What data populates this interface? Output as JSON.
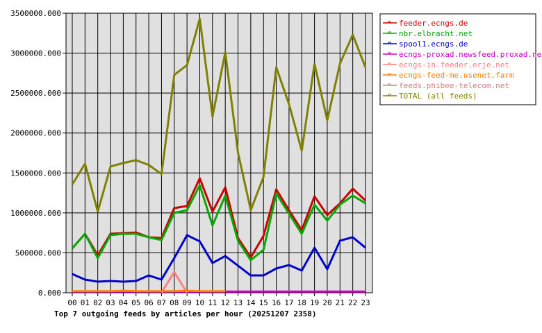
{
  "chart_data": {
    "type": "line",
    "title": "Top 7 outgoing feeds by articles per hour (20251207 2358)",
    "xlabel": "",
    "ylabel": "",
    "categories": [
      "00",
      "01",
      "02",
      "03",
      "04",
      "05",
      "06",
      "07",
      "08",
      "09",
      "10",
      "11",
      "12",
      "13",
      "14",
      "15",
      "16",
      "17",
      "18",
      "19",
      "20",
      "21",
      "22",
      "23"
    ],
    "ylim": [
      0,
      3500000
    ],
    "yticks": [
      0,
      500000,
      1000000,
      1500000,
      2000000,
      2500000,
      3000000,
      3500000
    ],
    "ytick_labels": [
      "0.000",
      "500000.000",
      "1000000.000",
      "1500000.000",
      "2000000.000",
      "2500000.000",
      "3000000.000",
      "3500000.000"
    ],
    "grid": true,
    "legend_position": "right",
    "series": [
      {
        "name": "feeder.ecngs.de",
        "color": "#cc0000",
        "values": [
          556000,
          738000,
          469000,
          738000,
          747000,
          755000,
          695000,
          686000,
          1060000,
          1086000,
          1433000,
          1016000,
          1320000,
          686000,
          443000,
          712000,
          1294000,
          1033000,
          782000,
          1207000,
          973000,
          1120000,
          1303000,
          1155000
        ]
      },
      {
        "name": "nbr.elbracht.net",
        "color": "#00aa00",
        "values": [
          556000,
          738000,
          434000,
          721000,
          738000,
          738000,
          695000,
          660000,
          999000,
          1033000,
          1346000,
          842000,
          1216000,
          652000,
          408000,
          538000,
          1242000,
          990000,
          738000,
          1103000,
          903000,
          1103000,
          1216000,
          1120000
        ]
      },
      {
        "name": "spool1.ecngs.de",
        "color": "#0000cc",
        "values": [
          234000,
          165000,
          139000,
          148000,
          139000,
          148000,
          217000,
          165000,
          434000,
          721000,
          643000,
          373000,
          460000,
          339000,
          217000,
          217000,
          304000,
          347000,
          278000,
          564000,
          295000,
          652000,
          695000,
          564000
        ]
      },
      {
        "name": "ecngs-proxad.newsfeed.proxad.net",
        "color": "#cc00cc",
        "values": [
          15000,
          15000,
          15000,
          15000,
          15000,
          15000,
          15000,
          15000,
          15000,
          15000,
          15000,
          15000,
          15000,
          15000,
          15000,
          15000,
          15000,
          15000,
          15000,
          15000,
          15000,
          15000,
          15000,
          15000
        ]
      },
      {
        "name": "ecngs-in.feeder.erje.net",
        "color": "#ff8080",
        "values": [
          null,
          null,
          null,
          null,
          null,
          null,
          null,
          0,
          260000,
          0,
          null,
          null,
          null,
          null,
          null,
          null,
          null,
          null,
          null,
          null,
          null,
          null,
          null,
          null
        ]
      },
      {
        "name": "ecngs-feed-me.usenet.farm",
        "color": "#ff8000",
        "values": [
          20000,
          20000,
          20000,
          20000,
          25000,
          20000,
          20000,
          20000,
          20000,
          25000,
          20000,
          20000,
          20000,
          null,
          null,
          null,
          null,
          null,
          null,
          null,
          null,
          null,
          null,
          null
        ]
      },
      {
        "name": "feeds.phibee-telecom.net",
        "color": "#cc8080",
        "values": [
          null,
          null,
          null,
          null,
          null,
          null,
          null,
          null,
          null,
          null,
          null,
          null,
          null,
          null,
          null,
          null,
          null,
          null,
          null,
          null,
          null,
          null,
          null,
          null
        ]
      },
      {
        "name": "TOTAL (all feeds)",
        "color": "#808000",
        "values": [
          1355000,
          1615000,
          1016000,
          1580000,
          1624000,
          1660000,
          1600000,
          1485000,
          2727000,
          2850000,
          3430000,
          2206000,
          3010000,
          1754000,
          1034000,
          1450000,
          2823000,
          2360000,
          1780000,
          2866000,
          2160000,
          2870000,
          3230000,
          2820000
        ]
      }
    ]
  }
}
